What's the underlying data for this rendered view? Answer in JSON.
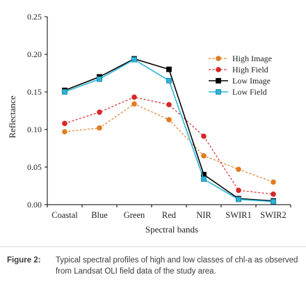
{
  "chart_data": {
    "type": "line",
    "title": "",
    "xlabel": "Spectral bands",
    "ylabel": "Reflectance",
    "categories": [
      "Coastal",
      "Blue",
      "Green",
      "Red",
      "NIR",
      "SWIR1",
      "SWIR2"
    ],
    "ylim": [
      0,
      0.25
    ],
    "yticks": [
      "0.00",
      "0.05",
      "0.10",
      "0.15",
      "0.20",
      "0.25"
    ],
    "yticks_values": [
      0,
      0.05,
      0.1,
      0.15,
      0.2,
      0.25
    ],
    "grid": false,
    "legend_placement": "top-right",
    "series": [
      {
        "name": "High Image",
        "color": "#E07B1F",
        "marker": "circle",
        "dash": "dotted",
        "values": [
          0.097,
          0.102,
          0.134,
          0.113,
          0.065,
          0.047,
          0.03
        ]
      },
      {
        "name": "High Field",
        "color": "#D62828",
        "marker": "circle",
        "dash": "dotted",
        "values": [
          0.108,
          0.123,
          0.143,
          0.133,
          0.091,
          0.019,
          0.014
        ]
      },
      {
        "name": "Low Image",
        "color": "#000000",
        "marker": "square",
        "dash": "solid",
        "values": [
          0.152,
          0.17,
          0.194,
          0.18,
          0.04,
          0.008,
          0.005
        ]
      },
      {
        "name": "Low Field",
        "color": "#2BB5D8",
        "marker": "square",
        "dash": "solid",
        "values": [
          0.15,
          0.167,
          0.193,
          0.165,
          0.034,
          0.007,
          0.004
        ]
      }
    ]
  },
  "caption": {
    "label": "Figure 2:",
    "text": "Typical spectral profiles of high and low classes of chl-a as observed from Landsat OLI field data of the study area."
  }
}
